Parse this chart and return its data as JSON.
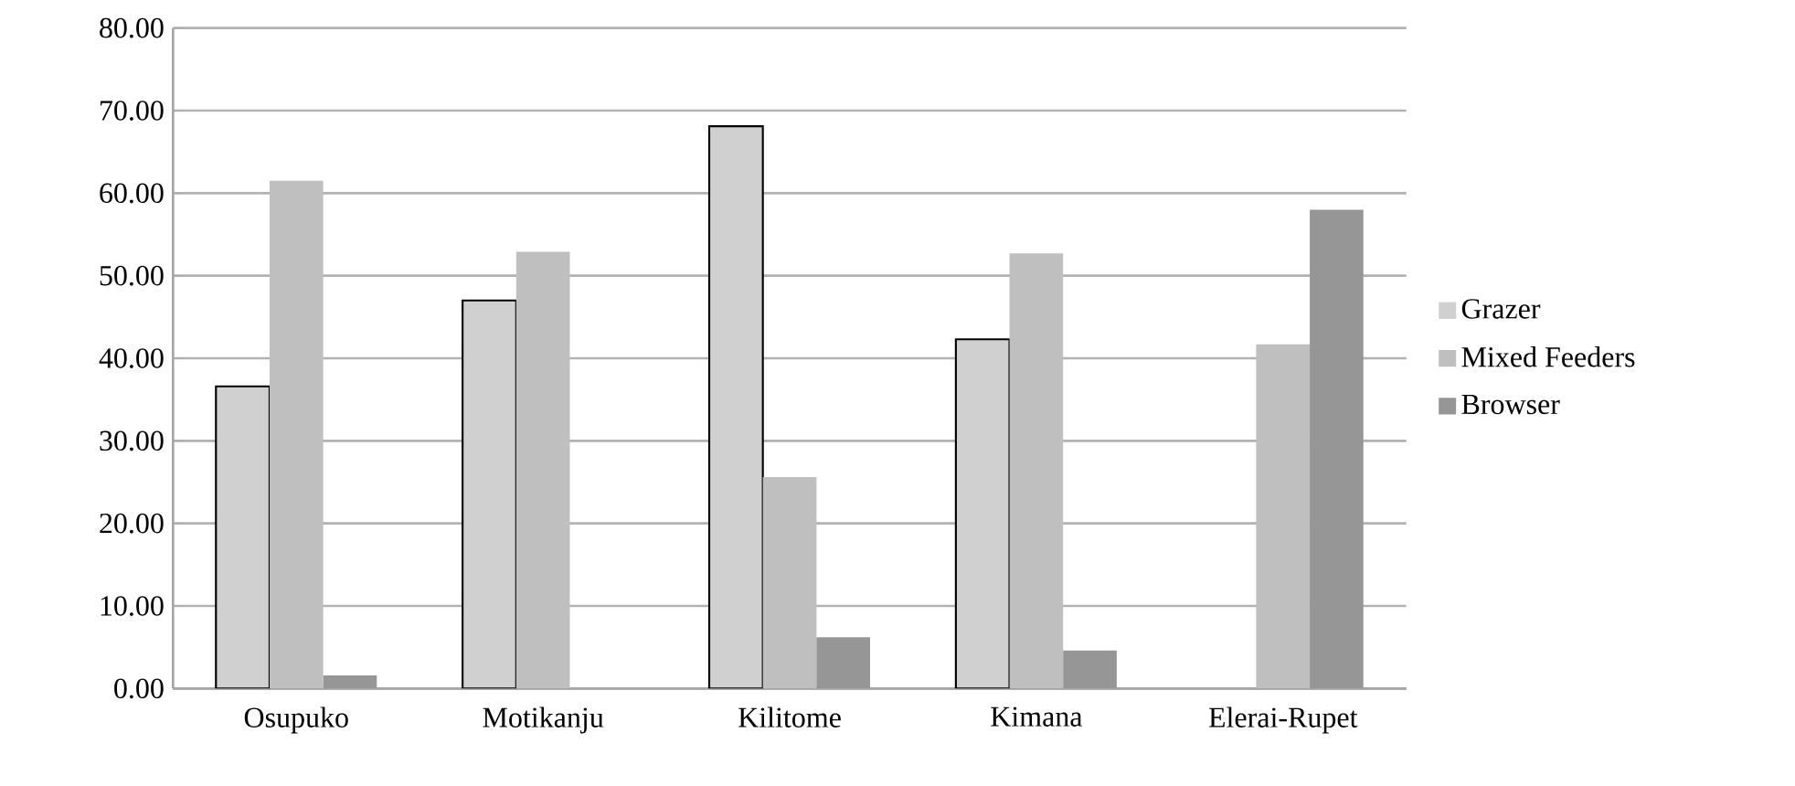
{
  "chart_data": {
    "type": "bar",
    "categories": [
      "Osupuko",
      "Motikanju",
      "Kilitome",
      "Kimana",
      "Elerai-Rupet"
    ],
    "series": [
      {
        "name": "Grazer",
        "color": "#d0d0d0",
        "values": [
          36.6,
          47.0,
          68.1,
          42.3,
          null
        ]
      },
      {
        "name": "Mixed Feeders",
        "color": "#bfbfbf",
        "values": [
          61.5,
          52.9,
          25.6,
          52.7,
          41.7
        ]
      },
      {
        "name": "Browser",
        "color": "#969696",
        "values": [
          1.6,
          null,
          6.2,
          4.6,
          58.0
        ]
      }
    ],
    "ylim": [
      0,
      80
    ],
    "yticks": [
      {
        "value": 0,
        "label": "0.00"
      },
      {
        "value": 10,
        "label": "10.00"
      },
      {
        "value": 20,
        "label": "20.00"
      },
      {
        "value": 30,
        "label": "30.00"
      },
      {
        "value": 40,
        "label": "40.00"
      },
      {
        "value": 50,
        "label": "50.00"
      },
      {
        "value": 60,
        "label": "60.00"
      },
      {
        "value": 70,
        "label": "70.00"
      },
      {
        "value": 80,
        "label": "80.00"
      }
    ],
    "grid": "y",
    "legend": "right"
  }
}
